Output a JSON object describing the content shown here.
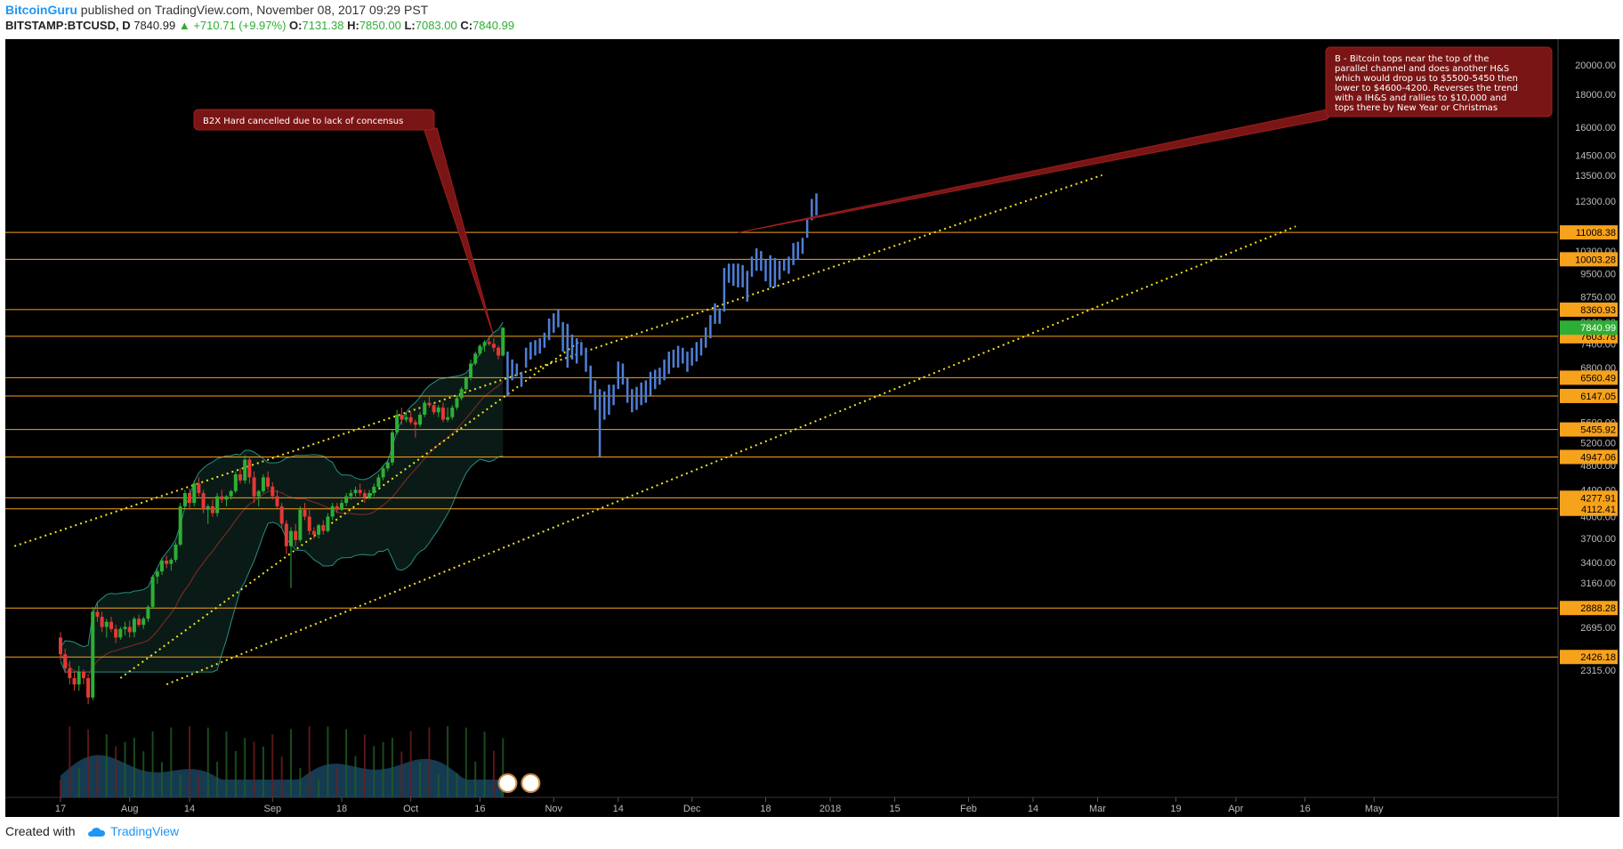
{
  "header": {
    "author": "BitcoinGuru",
    "published_text": "published on TradingView.com, November 08, 2017 09:29 PST"
  },
  "symbol_bar": {
    "symbol": "BITSTAMP:BTCUSD, D",
    "last": "7840.99",
    "change": "▲ +710.71 (+9.97%)",
    "open_label": "O:",
    "open": "7131.38",
    "high_label": "H:",
    "high": "7850.00",
    "low_label": "L:",
    "low": "7083.00",
    "close_label": "C:",
    "close": "7840.99"
  },
  "footer": {
    "created_with": "Created with",
    "brand": "TradingView"
  },
  "colors": {
    "background": "#000000",
    "candle_up": "#2eae34",
    "candle_down": "#e53935",
    "projection": "#4f7fd6",
    "hline": "#f7a21b",
    "channel": "#f5e51b",
    "callout": "#7a1515",
    "last_price_tag": "#2eae34"
  },
  "chart_data": {
    "type": "candlestick",
    "scale": "log",
    "ylim": [
      2250,
      21500
    ],
    "y_ticks": [
      "20000.00",
      "18000.00",
      "16000.00",
      "14500.00",
      "13500.00",
      "12300.00",
      "10300.00",
      "9500.00",
      "8750.00",
      "8000.00",
      "7400.00",
      "6800.00",
      "5600.00",
      "5200.00",
      "4800.00",
      "4400.00",
      "4000.00",
      "3700.00",
      "3400.00",
      "3160.00",
      "2695.00",
      "2315.00"
    ],
    "x_ticks": [
      "17",
      "Aug",
      "14",
      "Sep",
      "18",
      "Oct",
      "16",
      "Nov",
      "14",
      "Dec",
      "18",
      "2018",
      "15",
      "Feb",
      "14",
      "Mar",
      "19",
      "Apr",
      "16",
      "May"
    ],
    "x_tick_days": [
      0,
      15,
      28,
      46,
      61,
      76,
      91,
      107,
      121,
      137,
      153,
      167,
      181,
      197,
      211,
      225,
      242,
      255,
      270,
      285
    ],
    "horizontal_levels": [
      {
        "label": "11008.38",
        "value": 11008.38
      },
      {
        "label": "10003.28",
        "value": 10003.28
      },
      {
        "label": "8360.93",
        "value": 8360.93
      },
      {
        "label": "7603.78",
        "value": 7603.78
      },
      {
        "label": "6560.49",
        "value": 6560.49
      },
      {
        "label": "6147.05",
        "value": 6147.05
      },
      {
        "label": "5455.92",
        "value": 5455.92
      },
      {
        "label": "4947.06",
        "value": 4947.06
      },
      {
        "label": "4277.91",
        "value": 4277.91
      },
      {
        "label": "4112.41",
        "value": 4112.41
      },
      {
        "label": "2888.28",
        "value": 2888.28
      },
      {
        "label": "2426.18",
        "value": 2426.18
      }
    ],
    "last_price": {
      "label": "7840.99",
      "value": 7840.99
    },
    "channel_lines": [
      {
        "x": [
          -10,
          226
        ],
        "y": [
          3600,
          13500
        ]
      },
      {
        "x": [
          23,
          268
        ],
        "y": [
          2200,
          11250
        ]
      },
      {
        "x": [
          13,
          113
        ],
        "y": [
          2250,
          7500
        ]
      }
    ],
    "candles": [
      [
        2600,
        2650,
        2400,
        2450
      ],
      [
        2450,
        2500,
        2290,
        2330
      ],
      [
        2330,
        2390,
        2200,
        2250
      ],
      [
        2250,
        2300,
        2150,
        2200
      ],
      [
        2200,
        2350,
        2150,
        2300
      ],
      [
        2300,
        2320,
        2200,
        2250
      ],
      [
        2250,
        2270,
        2050,
        2100
      ],
      [
        2100,
        2900,
        2080,
        2850
      ],
      [
        2850,
        2950,
        2750,
        2800
      ],
      [
        2800,
        2850,
        2650,
        2700
      ],
      [
        2700,
        2780,
        2600,
        2750
      ],
      [
        2750,
        2800,
        2650,
        2680
      ],
      [
        2680,
        2720,
        2550,
        2600
      ],
      [
        2600,
        2700,
        2580,
        2680
      ],
      [
        2680,
        2750,
        2620,
        2700
      ],
      [
        2700,
        2760,
        2600,
        2650
      ],
      [
        2650,
        2800,
        2600,
        2780
      ],
      [
        2780,
        2820,
        2700,
        2720
      ],
      [
        2720,
        2800,
        2680,
        2780
      ],
      [
        2780,
        2920,
        2750,
        2900
      ],
      [
        2900,
        3250,
        2880,
        3230
      ],
      [
        3230,
        3320,
        3150,
        3290
      ],
      [
        3290,
        3450,
        3250,
        3420
      ],
      [
        3420,
        3480,
        3330,
        3380
      ],
      [
        3380,
        3450,
        3300,
        3430
      ],
      [
        3430,
        3650,
        3400,
        3620
      ],
      [
        3620,
        4200,
        3600,
        4150
      ],
      [
        4150,
        4400,
        4100,
        4350
      ],
      [
        4350,
        4420,
        4100,
        4200
      ],
      [
        4200,
        4550,
        4150,
        4500
      ],
      [
        4500,
        4600,
        4300,
        4350
      ],
      [
        4350,
        4400,
        4050,
        4100
      ],
      [
        4100,
        4180,
        3900,
        4150
      ],
      [
        4150,
        4250,
        4000,
        4050
      ],
      [
        4050,
        4350,
        4000,
        4300
      ],
      [
        4300,
        4400,
        4200,
        4250
      ],
      [
        4250,
        4320,
        4150,
        4300
      ],
      [
        4300,
        4400,
        4250,
        4380
      ],
      [
        4380,
        4700,
        4350,
        4650
      ],
      [
        4650,
        4750,
        4500,
        4550
      ],
      [
        4550,
        4980,
        4500,
        4900
      ],
      [
        4900,
        4950,
        4500,
        4600
      ],
      [
        4600,
        4700,
        4200,
        4300
      ],
      [
        4300,
        4400,
        4150,
        4380
      ],
      [
        4380,
        4650,
        4350,
        4600
      ],
      [
        4600,
        4700,
        4400,
        4450
      ],
      [
        4450,
        4520,
        4250,
        4300
      ],
      [
        4300,
        4400,
        4100,
        4150
      ],
      [
        4150,
        4200,
        3850,
        3900
      ],
      [
        3900,
        3950,
        3500,
        3600
      ],
      [
        3600,
        3850,
        3100,
        3800
      ],
      [
        3800,
        3900,
        3600,
        3680
      ],
      [
        3680,
        4150,
        3650,
        4100
      ],
      [
        4100,
        4200,
        3950,
        4000
      ],
      [
        4000,
        4100,
        3750,
        3800
      ],
      [
        3800,
        3850,
        3700,
        3750
      ],
      [
        3750,
        3900,
        3700,
        3880
      ],
      [
        3880,
        3950,
        3750,
        3800
      ],
      [
        3800,
        4050,
        3780,
        4000
      ],
      [
        4000,
        4200,
        3950,
        4150
      ],
      [
        4150,
        4200,
        4050,
        4100
      ],
      [
        4100,
        4250,
        4080,
        4200
      ],
      [
        4200,
        4350,
        4150,
        4300
      ],
      [
        4300,
        4400,
        4250,
        4350
      ],
      [
        4350,
        4450,
        4300,
        4400
      ],
      [
        4400,
        4500,
        4300,
        4350
      ],
      [
        4350,
        4400,
        4200,
        4280
      ],
      [
        4280,
        4400,
        4250,
        4350
      ],
      [
        4350,
        4500,
        4300,
        4450
      ],
      [
        4450,
        4650,
        4400,
        4600
      ],
      [
        4600,
        4800,
        4550,
        4750
      ],
      [
        4750,
        4900,
        4700,
        4850
      ],
      [
        4850,
        5450,
        4800,
        5400
      ],
      [
        5400,
        5850,
        5350,
        5750
      ],
      [
        5750,
        5900,
        5550,
        5650
      ],
      [
        5650,
        5800,
        5600,
        5700
      ],
      [
        5700,
        5800,
        5550,
        5600
      ],
      [
        5600,
        5650,
        5300,
        5550
      ],
      [
        5550,
        5800,
        5500,
        5750
      ],
      [
        5750,
        6050,
        5700,
        6000
      ],
      [
        6000,
        6150,
        5900,
        5950
      ],
      [
        5950,
        6000,
        5750,
        5800
      ],
      [
        5800,
        5950,
        5700,
        5900
      ],
      [
        5900,
        6000,
        5600,
        5650
      ],
      [
        5650,
        5900,
        5600,
        5700
      ],
      [
        5700,
        5950,
        5650,
        5900
      ],
      [
        5900,
        6150,
        5850,
        6100
      ],
      [
        6100,
        6350,
        6050,
        6300
      ],
      [
        6300,
        6600,
        6250,
        6550
      ],
      [
        6550,
        7000,
        6500,
        6900
      ],
      [
        6900,
        7200,
        6850,
        7150
      ],
      [
        7150,
        7400,
        7100,
        7350
      ],
      [
        7350,
        7500,
        7200,
        7450
      ],
      [
        7450,
        7600,
        7350,
        7400
      ],
      [
        7400,
        7550,
        7200,
        7300
      ],
      [
        7300,
        7350,
        7000,
        7100
      ],
      [
        7100,
        7850,
        7080,
        7840
      ]
    ],
    "projection": [
      [
        7840,
        7200,
        6150
      ],
      [
        7300,
        7000,
        6500
      ],
      [
        7100,
        6900,
        6600
      ],
      [
        6950,
        6700,
        6350
      ],
      [
        6950,
        7300,
        6800
      ],
      [
        7250,
        7450,
        7000
      ],
      [
        7250,
        7500,
        7100
      ],
      [
        7350,
        7550,
        7150
      ],
      [
        7550,
        7700,
        7300
      ],
      [
        7700,
        8100,
        7500
      ],
      [
        7950,
        8250,
        7700
      ],
      [
        8100,
        8350,
        7850
      ],
      [
        7700,
        8000,
        7200
      ],
      [
        7800,
        7950,
        6800
      ],
      [
        7450,
        7650,
        7000
      ],
      [
        7300,
        7550,
        6900
      ],
      [
        7250,
        7450,
        7100
      ],
      [
        7150,
        7300,
        6700
      ],
      [
        6700,
        6850,
        6200
      ],
      [
        6300,
        6500,
        5850
      ],
      [
        6100,
        6300,
        4950
      ],
      [
        6000,
        6250,
        5650
      ],
      [
        6150,
        6400,
        5750
      ],
      [
        6150,
        6400,
        5950
      ],
      [
        6700,
        6950,
        6300
      ],
      [
        6700,
        6900,
        6400
      ],
      [
        6350,
        6550,
        6000
      ],
      [
        6100,
        6300,
        5800
      ],
      [
        6150,
        6350,
        5850
      ],
      [
        6150,
        6450,
        5950
      ],
      [
        6200,
        6500,
        6000
      ],
      [
        6300,
        6700,
        6150
      ],
      [
        6550,
        6750,
        6300
      ],
      [
        6600,
        6800,
        6400
      ],
      [
        6750,
        7000,
        6500
      ],
      [
        6950,
        7200,
        6650
      ],
      [
        7050,
        7250,
        6800
      ],
      [
        7100,
        7350,
        6800
      ],
      [
        7150,
        7300,
        6900
      ],
      [
        7000,
        7200,
        6700
      ],
      [
        7050,
        7300,
        6850
      ],
      [
        7200,
        7450,
        6950
      ],
      [
        7350,
        7550,
        7100
      ],
      [
        7550,
        7850,
        7300
      ],
      [
        7800,
        8200,
        7550
      ],
      [
        8200,
        8550,
        7950
      ],
      [
        8150,
        8400,
        7950
      ],
      [
        9000,
        9700,
        8300
      ],
      [
        9500,
        9850,
        9200
      ],
      [
        9450,
        9850,
        9100
      ],
      [
        9500,
        9850,
        9050
      ],
      [
        9300,
        9800,
        9050
      ],
      [
        9350,
        9600,
        8600
      ],
      [
        9700,
        10100,
        9400
      ],
      [
        9950,
        10400,
        9600
      ],
      [
        10050,
        10300,
        9600
      ],
      [
        9750,
        10000,
        9250
      ],
      [
        9500,
        10150,
        9050
      ],
      [
        9600,
        10050,
        9050
      ],
      [
        9700,
        9950,
        9300
      ],
      [
        9800,
        10000,
        9600
      ],
      [
        9800,
        10100,
        9500
      ],
      [
        10200,
        10600,
        9800
      ],
      [
        10300,
        10650,
        10000
      ],
      [
        10500,
        10800,
        10200
      ],
      [
        11100,
        11600,
        10800
      ],
      [
        11800,
        12400,
        11500
      ],
      [
        12300,
        12650,
        11700
      ]
    ],
    "annotations": [
      {
        "text": [
          "B2X Hard cancelled due to lack of concensus"
        ]
      },
      {
        "text": [
          "B - Bitcoin tops near the top of the",
          "parallel channel and does another H&S",
          "which would drop us to $5500-5450 then",
          "lower to $4600-4200. Reverses the trend",
          "with a IH&S and rallies to $10,000 and",
          "tops there by New Year or Christmas"
        ]
      }
    ]
  }
}
